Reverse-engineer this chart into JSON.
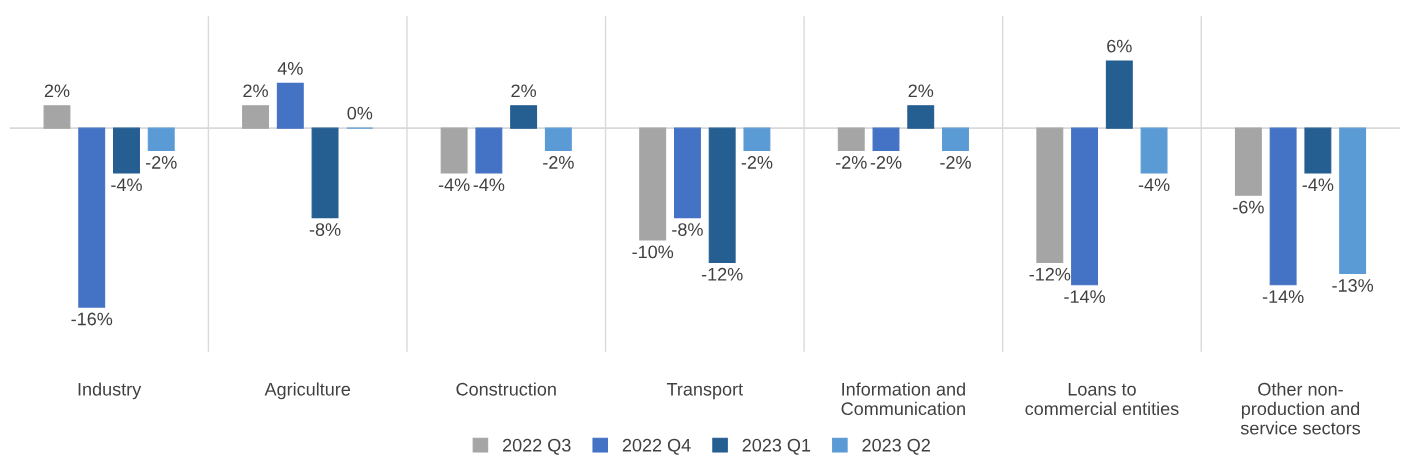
{
  "chart_data": {
    "type": "bar",
    "categories": [
      "Industry",
      "Agriculture",
      "Construction",
      "Transport",
      "Information and\nCommunication",
      "Loans to\ncommercial entities",
      "Other non-\nproduction and\nservice sectors"
    ],
    "series": [
      {
        "name": "2022 Q3",
        "color": "#a5a5a5",
        "values": [
          2,
          2,
          -4,
          -10,
          -2,
          -12,
          -6
        ],
        "value_labels": [
          "2%",
          "2%",
          "-4%",
          "-10%",
          "-2%",
          "-12%",
          "-6%"
        ]
      },
      {
        "name": "2022 Q4",
        "color": "#4472c4",
        "values": [
          -16,
          4,
          -4,
          -8,
          -2,
          -14,
          -14
        ],
        "value_labels": [
          "-16%",
          "4%",
          "-4%",
          "-8%",
          "-2%",
          "-14%",
          "-14%"
        ]
      },
      {
        "name": "2023 Q1",
        "color": "#255e91",
        "values": [
          -4,
          -8,
          2,
          -12,
          2,
          6,
          -4
        ],
        "value_labels": [
          "-4%",
          "-8%",
          "2%",
          "-12%",
          "2%",
          "6%",
          "-4%"
        ]
      },
      {
        "name": "2023 Q2",
        "color": "#5b9bd5",
        "values": [
          -2,
          0,
          -2,
          -2,
          -2,
          -4,
          -13
        ],
        "value_labels": [
          "-2%",
          "0%",
          "-2%",
          "-2%",
          "-2%",
          "-4%",
          "-13%"
        ]
      }
    ],
    "ylim": [
      -20,
      10
    ],
    "grid": "x",
    "legend": "bottom"
  }
}
